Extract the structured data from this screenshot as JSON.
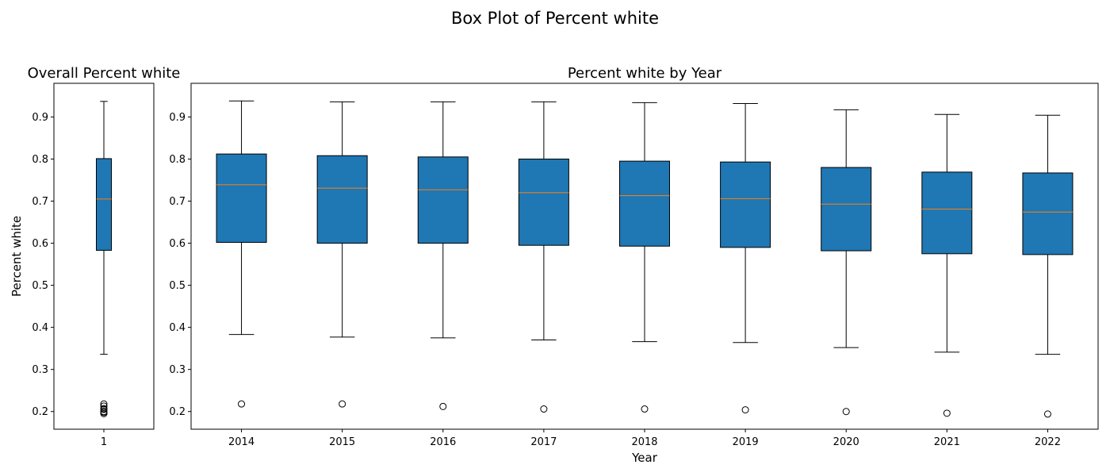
{
  "title": "Box Plot of Percent white",
  "colors": {
    "box_fill": "#1f77b4",
    "median": "#ff7f0e",
    "line": "#000000",
    "background": "#ffffff"
  },
  "chart_data": [
    {
      "type": "box",
      "title": "Overall Percent white",
      "xlabel": "",
      "ylabel": "Percent white",
      "ylim": [
        0.158,
        0.98
      ],
      "yticks": [
        "0.2",
        "0.3",
        "0.4",
        "0.5",
        "0.6",
        "0.7",
        "0.8",
        "0.9"
      ],
      "categories": [
        "1"
      ],
      "boxes": [
        {
          "label": "1",
          "whislo": 0.336,
          "q1": 0.583,
          "med": 0.705,
          "q3": 0.801,
          "whishi": 0.937,
          "fliers": [
            0.218,
            0.213,
            0.207,
            0.205,
            0.2,
            0.198,
            0.195
          ]
        }
      ]
    },
    {
      "type": "box",
      "title": "Percent white by Year",
      "xlabel": "Year",
      "ylabel": "",
      "ylim": [
        0.158,
        0.98
      ],
      "yticks": [
        "0.2",
        "0.3",
        "0.4",
        "0.5",
        "0.6",
        "0.7",
        "0.8",
        "0.9"
      ],
      "categories": [
        "2014",
        "2015",
        "2016",
        "2017",
        "2018",
        "2019",
        "2020",
        "2021",
        "2022"
      ],
      "boxes": [
        {
          "label": "2014",
          "whislo": 0.383,
          "q1": 0.602,
          "med": 0.739,
          "q3": 0.812,
          "whishi": 0.938,
          "fliers": [
            0.218
          ]
        },
        {
          "label": "2015",
          "whislo": 0.377,
          "q1": 0.6,
          "med": 0.731,
          "q3": 0.808,
          "whishi": 0.936,
          "fliers": [
            0.218
          ]
        },
        {
          "label": "2016",
          "whislo": 0.375,
          "q1": 0.6,
          "med": 0.727,
          "q3": 0.805,
          "whishi": 0.936,
          "fliers": [
            0.212
          ]
        },
        {
          "label": "2017",
          "whislo": 0.37,
          "q1": 0.595,
          "med": 0.72,
          "q3": 0.8,
          "whishi": 0.936,
          "fliers": [
            0.206
          ]
        },
        {
          "label": "2018",
          "whislo": 0.366,
          "q1": 0.593,
          "med": 0.713,
          "q3": 0.795,
          "whishi": 0.934,
          "fliers": [
            0.206
          ]
        },
        {
          "label": "2019",
          "whislo": 0.364,
          "q1": 0.59,
          "med": 0.706,
          "q3": 0.793,
          "whishi": 0.932,
          "fliers": [
            0.204
          ]
        },
        {
          "label": "2020",
          "whislo": 0.352,
          "q1": 0.582,
          "med": 0.693,
          "q3": 0.78,
          "whishi": 0.917,
          "fliers": [
            0.2
          ]
        },
        {
          "label": "2021",
          "whislo": 0.341,
          "q1": 0.575,
          "med": 0.681,
          "q3": 0.769,
          "whishi": 0.906,
          "fliers": [
            0.196
          ]
        },
        {
          "label": "2022",
          "whislo": 0.336,
          "q1": 0.573,
          "med": 0.674,
          "q3": 0.767,
          "whishi": 0.904,
          "fliers": [
            0.194
          ]
        }
      ]
    }
  ]
}
